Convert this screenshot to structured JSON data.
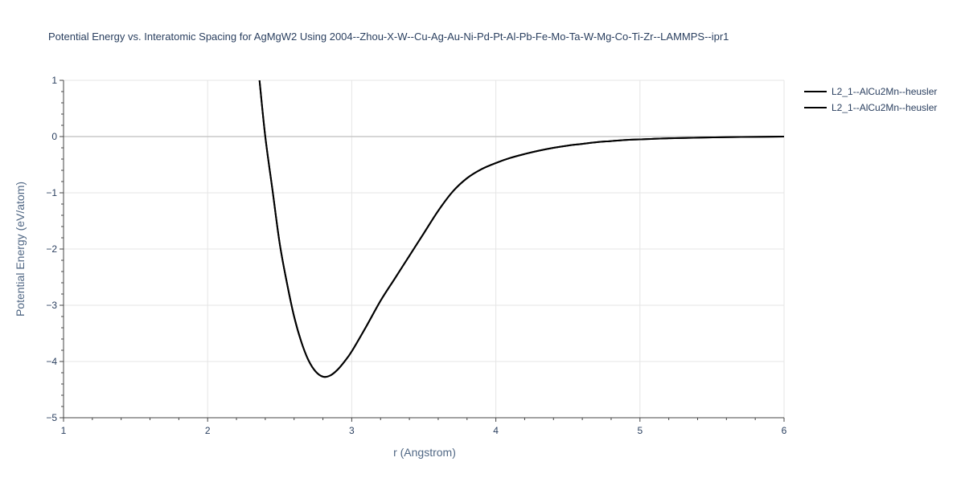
{
  "chart_data": {
    "type": "line",
    "title": "Potential Energy vs. Interatomic Spacing for AgMgW2 Using 2004--Zhou-X-W--Cu-Ag-Au-Ni-Pd-Pt-Al-Pb-Fe-Mo-Ta-W-Mg-Co-Ti-Zr--LAMMPS--ipr1",
    "xlabel": "r (Angstrom)",
    "ylabel": "Potential Energy (eV/atom)",
    "xlim": [
      1,
      6
    ],
    "ylim": [
      -5,
      1
    ],
    "x_ticks": [
      1,
      2,
      3,
      4,
      5,
      6
    ],
    "y_ticks": [
      1,
      0,
      -1,
      -2,
      -3,
      -4,
      -5
    ],
    "x_tick_labels": [
      "1",
      "2",
      "3",
      "4",
      "5",
      "6"
    ],
    "y_tick_labels": [
      "1",
      "0",
      "−1",
      "−2",
      "−3",
      "−4",
      "−5"
    ],
    "grid": true,
    "legend_position": "top-right-outside",
    "series": [
      {
        "name": "L2_1--AlCu2Mn--heusler",
        "color": "#000000",
        "x": [
          2.36,
          2.4,
          2.45,
          2.5,
          2.55,
          2.6,
          2.65,
          2.7,
          2.75,
          2.8,
          2.85,
          2.9,
          2.95,
          3.0,
          3.1,
          3.2,
          3.3,
          3.4,
          3.5,
          3.6,
          3.7,
          3.8,
          3.9,
          4.0,
          4.1,
          4.2,
          4.3,
          4.4,
          4.5,
          4.6,
          4.7,
          4.8,
          4.9,
          5.0,
          5.2,
          5.4,
          5.6,
          5.8,
          6.0
        ],
        "y": [
          1.0,
          0.0,
          -0.95,
          -1.9,
          -2.6,
          -3.2,
          -3.65,
          -3.98,
          -4.18,
          -4.27,
          -4.25,
          -4.15,
          -4.0,
          -3.82,
          -3.38,
          -2.92,
          -2.52,
          -2.12,
          -1.72,
          -1.32,
          -0.98,
          -0.74,
          -0.58,
          -0.47,
          -0.38,
          -0.31,
          -0.25,
          -0.2,
          -0.16,
          -0.13,
          -0.1,
          -0.08,
          -0.06,
          -0.05,
          -0.03,
          -0.02,
          -0.01,
          -0.005,
          0.0
        ]
      },
      {
        "name": "L2_1--AlCu2Mn--heusler",
        "color": "#000000",
        "x": [
          2.36,
          2.4,
          2.45,
          2.5,
          2.55,
          2.6,
          2.65,
          2.7,
          2.75,
          2.8,
          2.85,
          2.9,
          2.95,
          3.0,
          3.1,
          3.2,
          3.3,
          3.4,
          3.5,
          3.6,
          3.7,
          3.8,
          3.9,
          4.0,
          4.1,
          4.2,
          4.3,
          4.4,
          4.5,
          4.6,
          4.7,
          4.8,
          4.9,
          5.0,
          5.2,
          5.4,
          5.6,
          5.8,
          6.0
        ],
        "y": [
          1.0,
          0.0,
          -0.95,
          -1.9,
          -2.6,
          -3.2,
          -3.65,
          -3.98,
          -4.18,
          -4.27,
          -4.25,
          -4.15,
          -4.0,
          -3.82,
          -3.38,
          -2.92,
          -2.52,
          -2.12,
          -1.72,
          -1.32,
          -0.98,
          -0.74,
          -0.58,
          -0.47,
          -0.38,
          -0.31,
          -0.25,
          -0.2,
          -0.16,
          -0.13,
          -0.1,
          -0.08,
          -0.06,
          -0.05,
          -0.03,
          -0.02,
          -0.01,
          -0.005,
          0.0
        ]
      }
    ]
  }
}
